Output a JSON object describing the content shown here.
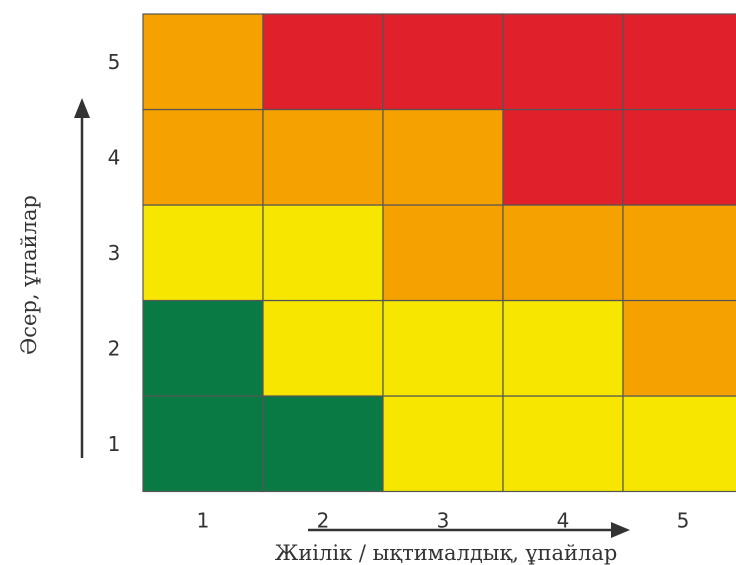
{
  "chart_data": {
    "type": "heatmap",
    "x_ticks": [
      "1",
      "2",
      "3",
      "4",
      "5"
    ],
    "y_ticks": [
      "1",
      "2",
      "3",
      "4",
      "5"
    ],
    "xlabel": "Жиілік / ықтималдық, ұпайлар",
    "ylabel": "Әсер, ұпайлар",
    "rows": [
      {
        "y": "1",
        "cells": [
          "green",
          "green",
          "yellow",
          "yellow",
          "yellow"
        ]
      },
      {
        "y": "2",
        "cells": [
          "green",
          "yellow",
          "yellow",
          "yellow",
          "orange"
        ]
      },
      {
        "y": "3",
        "cells": [
          "yellow",
          "yellow",
          "orange",
          "orange",
          "orange"
        ]
      },
      {
        "y": "4",
        "cells": [
          "orange",
          "orange",
          "orange",
          "red",
          "red"
        ]
      },
      {
        "y": "5",
        "cells": [
          "orange",
          "red",
          "red",
          "red",
          "red"
        ]
      }
    ],
    "colors": {
      "green": "#0a7a45",
      "yellow": "#f6e600",
      "orange": "#f5a100",
      "red": "#e0202a",
      "grid": "#555555"
    }
  }
}
